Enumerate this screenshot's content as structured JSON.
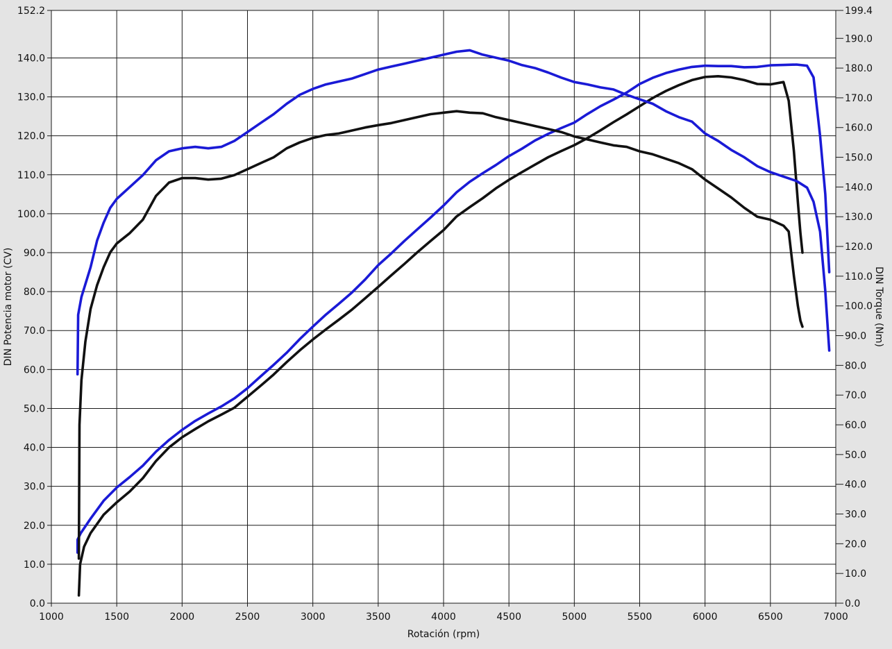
{
  "chart_data": {
    "type": "line",
    "title": "",
    "xlabel": "Rotación (rpm)",
    "ylabel_left": "DIN Potencia motor (CV)",
    "ylabel_right": "DIN Torque (Nm)",
    "xlim": [
      1000,
      7000
    ],
    "ylim_left": [
      0,
      152.2
    ],
    "ylim_right": [
      0,
      199.4
    ],
    "x_ticks": [
      "1000",
      "1500",
      "2000",
      "2500",
      "3000",
      "3500",
      "4000",
      "4500",
      "5000",
      "5500",
      "6000",
      "6500",
      "7000"
    ],
    "y_left_ticks": [
      "0.0",
      "10.0",
      "20.0",
      "30.0",
      "40.0",
      "50.0",
      "60.0",
      "70.0",
      "80.0",
      "90.0",
      "100.0",
      "110.0",
      "120.0",
      "130.0",
      "140.0",
      "152.2"
    ],
    "y_right_ticks": [
      "0.0",
      "10.0",
      "20.0",
      "30.0",
      "40.0",
      "50.0",
      "60.0",
      "70.0",
      "80.0",
      "90.0",
      "100.0",
      "110.0",
      "120.0",
      "130.0",
      "140.0",
      "150.0",
      "160.0",
      "170.0",
      "180.0",
      "190.0",
      "199.4"
    ],
    "grid": true,
    "legend": "none",
    "series": [
      {
        "color": "#1a1ad6",
        "axis": "left",
        "kind": "power",
        "x": [
          1200,
          1200,
          1225,
          1300,
          1400,
          1500,
          1600,
          1700,
          1800,
          1900,
          2000,
          2100,
          2200,
          2300,
          2400,
          2500,
          2600,
          2700,
          2800,
          2900,
          3000,
          3100,
          3200,
          3300,
          3400,
          3500,
          3600,
          3700,
          3800,
          3900,
          4000,
          4100,
          4200,
          4300,
          4400,
          4500,
          4600,
          4700,
          4800,
          4900,
          5000,
          5100,
          5200,
          5300,
          5400,
          5500,
          5600,
          5700,
          5800,
          5900,
          6000,
          6100,
          6200,
          6300,
          6400,
          6500,
          6600,
          6700,
          6780,
          6830,
          6880,
          6920,
          6950
        ],
        "y": [
          13.0,
          16.3,
          18.0,
          21.7,
          26.3,
          29.7,
          32.4,
          35.3,
          38.9,
          41.9,
          44.5,
          46.8,
          48.7,
          50.5,
          52.6,
          55.2,
          58.2,
          61.2,
          64.3,
          67.8,
          71.0,
          74.1,
          76.9,
          79.8,
          83.1,
          86.8,
          89.8,
          93.0,
          96.0,
          99.0,
          102.1,
          105.5,
          108.2,
          110.4,
          112.5,
          114.8,
          116.7,
          118.8,
          120.5,
          122.0,
          123.4,
          125.6,
          127.6,
          129.3,
          131.1,
          133.3,
          134.9,
          136.1,
          137.0,
          137.7,
          138.0,
          137.9,
          137.9,
          137.6,
          137.7,
          138.1,
          138.2,
          138.3,
          138.0,
          135.0,
          120.0,
          105.0,
          85.0
        ]
      },
      {
        "color": "#111111",
        "axis": "left",
        "kind": "power",
        "x": [
          1210,
          1220,
          1250,
          1300,
          1400,
          1500,
          1600,
          1700,
          1800,
          1900,
          2000,
          2100,
          2200,
          2300,
          2400,
          2500,
          2600,
          2700,
          2800,
          2900,
          3000,
          3100,
          3200,
          3300,
          3400,
          3500,
          3600,
          3700,
          3800,
          3900,
          4000,
          4100,
          4200,
          4300,
          4400,
          4500,
          4600,
          4700,
          4800,
          4900,
          5000,
          5100,
          5200,
          5300,
          5400,
          5500,
          5600,
          5700,
          5800,
          5900,
          6000,
          6100,
          6200,
          6300,
          6400,
          6500,
          6600,
          6640,
          6680,
          6710,
          6730,
          6745
        ],
        "y": [
          2.0,
          10.0,
          14.5,
          18.0,
          22.7,
          25.9,
          28.7,
          32.1,
          36.5,
          40.0,
          42.6,
          44.7,
          46.7,
          48.4,
          50.2,
          53.0,
          55.8,
          58.7,
          61.9,
          64.9,
          67.7,
          70.3,
          72.8,
          75.4,
          78.3,
          81.2,
          84.2,
          87.1,
          90.1,
          93.0,
          95.8,
          99.3,
          101.7,
          104.0,
          106.5,
          108.7,
          110.7,
          112.6,
          114.5,
          116.1,
          117.6,
          119.4,
          121.4,
          123.5,
          125.5,
          127.6,
          129.7,
          131.5,
          133.0,
          134.3,
          135.1,
          135.3,
          135.0,
          134.3,
          133.3,
          133.2,
          133.8,
          129.0,
          116.0,
          103.0,
          95.0,
          90.0
        ]
      },
      {
        "color": "#1a1ad6",
        "axis": "right",
        "kind": "torque",
        "x": [
          1200,
          1205,
          1230,
          1300,
          1350,
          1400,
          1450,
          1500,
          1600,
          1700,
          1800,
          1900,
          2000,
          2100,
          2200,
          2300,
          2400,
          2500,
          2600,
          2700,
          2800,
          2900,
          3000,
          3100,
          3200,
          3300,
          3400,
          3500,
          3600,
          3700,
          3800,
          3900,
          4000,
          4100,
          4200,
          4300,
          4400,
          4500,
          4600,
          4700,
          4800,
          4900,
          5000,
          5100,
          5200,
          5300,
          5400,
          5500,
          5600,
          5700,
          5800,
          5900,
          6000,
          6100,
          6200,
          6300,
          6400,
          6500,
          6600,
          6700,
          6780,
          6830,
          6880,
          6920,
          6950
        ],
        "y": [
          77.0,
          97.0,
          103.0,
          113.0,
          122.0,
          128.0,
          133.0,
          136.0,
          140.0,
          144.0,
          149.0,
          152.0,
          153.0,
          153.5,
          153.0,
          153.5,
          155.5,
          158.5,
          161.5,
          164.5,
          168.0,
          171.0,
          173.0,
          174.5,
          175.5,
          176.5,
          178.0,
          179.5,
          180.5,
          181.5,
          182.5,
          183.5,
          184.5,
          185.5,
          186.0,
          184.5,
          183.5,
          182.5,
          181.0,
          180.0,
          178.5,
          176.8,
          175.3,
          174.5,
          173.5,
          172.8,
          171.0,
          169.5,
          168.0,
          165.5,
          163.5,
          162.0,
          158.0,
          155.5,
          152.5,
          150.0,
          147.0,
          145.0,
          143.5,
          142.0,
          139.8,
          135.0,
          125.0,
          105.0,
          85.0
        ]
      },
      {
        "color": "#111111",
        "axis": "right",
        "kind": "torque",
        "x": [
          1210,
          1215,
          1230,
          1260,
          1300,
          1350,
          1400,
          1450,
          1500,
          1600,
          1700,
          1800,
          1900,
          2000,
          2100,
          2200,
          2300,
          2400,
          2500,
          2600,
          2700,
          2800,
          2900,
          3000,
          3100,
          3200,
          3300,
          3400,
          3500,
          3600,
          3700,
          3800,
          3900,
          4000,
          4100,
          4200,
          4300,
          4400,
          4500,
          4600,
          4700,
          4800,
          4900,
          5000,
          5100,
          5200,
          5300,
          5400,
          5500,
          5600,
          5700,
          5800,
          5900,
          6000,
          6100,
          6200,
          6300,
          6400,
          6500,
          6600,
          6640,
          6680,
          6710,
          6730,
          6745
        ],
        "y": [
          15.0,
          60.0,
          75.0,
          88.0,
          99.0,
          107.0,
          113.0,
          118.0,
          121.0,
          124.5,
          129.0,
          137.0,
          141.5,
          143.0,
          143.0,
          142.5,
          142.8,
          144.0,
          146.0,
          148.0,
          150.0,
          153.0,
          155.0,
          156.5,
          157.5,
          158.0,
          159.0,
          160.0,
          160.8,
          161.5,
          162.5,
          163.5,
          164.5,
          165.0,
          165.5,
          165.0,
          164.8,
          163.5,
          162.5,
          161.5,
          160.5,
          159.5,
          158.5,
          157.0,
          156.0,
          155.0,
          154.0,
          153.5,
          152.0,
          151.0,
          149.5,
          148.0,
          146.0,
          142.5,
          139.5,
          136.5,
          133.0,
          130.0,
          129.0,
          127.0,
          125.0,
          110.0,
          100.0,
          95.0,
          93.0
        ]
      }
    ]
  }
}
